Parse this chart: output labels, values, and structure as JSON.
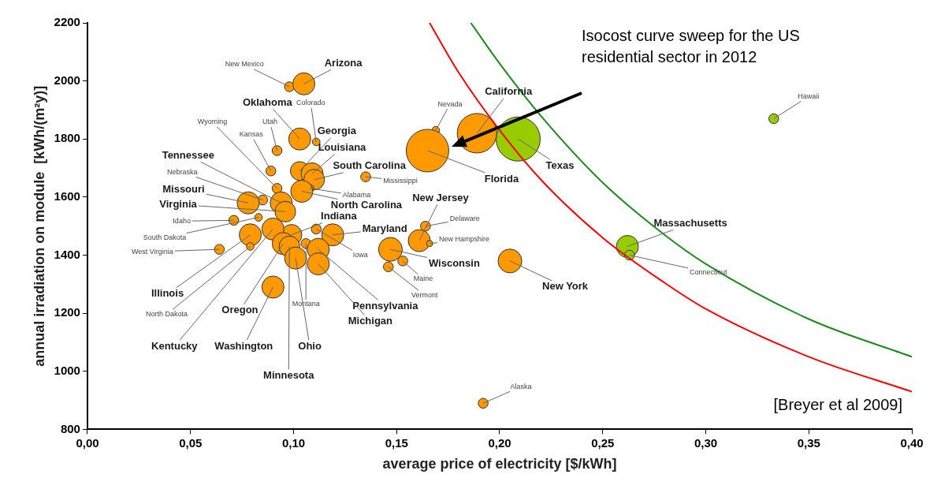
{
  "chart_data": {
    "type": "bubble",
    "xlabel": "average price of electricity [$/kWh]",
    "ylabel": "annual irradiation on module  [kWh/(m²y)]",
    "xlim": [
      0,
      0.4
    ],
    "ylim": [
      800,
      2200
    ],
    "xticks": [
      {
        "value": 0,
        "label": "0,00"
      },
      {
        "value": 0.05,
        "label": "0,05"
      },
      {
        "value": 0.1,
        "label": "0,10"
      },
      {
        "value": 0.15,
        "label": "0,15"
      },
      {
        "value": 0.2,
        "label": "0,20"
      },
      {
        "value": 0.25,
        "label": "0,25"
      },
      {
        "value": 0.3,
        "label": "0,30"
      },
      {
        "value": 0.35,
        "label": "0,35"
      },
      {
        "value": 0.4,
        "label": "0,40"
      }
    ],
    "yticks": [
      800,
      1000,
      1200,
      1400,
      1600,
      1800,
      2000,
      2200
    ],
    "grid": false,
    "legend": false,
    "series": [
      {
        "type": "bubble",
        "color": "#ff9900",
        "x": [
          0.098,
          0.105,
          0.103,
          0.111,
          0.092,
          0.089,
          0.103,
          0.109,
          0.11,
          0.108,
          0.104,
          0.135,
          0.092,
          0.094,
          0.085,
          0.078,
          0.096,
          0.071,
          0.083,
          0.099,
          0.079,
          0.079,
          0.09,
          0.064,
          0.095,
          0.09,
          0.098,
          0.101,
          0.106,
          0.111,
          0.119,
          0.112,
          0.112,
          0.169,
          0.165,
          0.189,
          0.164,
          0.161,
          0.166,
          0.147,
          0.153,
          0.146,
          0.205,
          0.192
        ],
        "values": [
          1980,
          1990,
          1800,
          1790,
          1760,
          1690,
          1690,
          1680,
          1660,
          1630,
          1620,
          1670,
          1630,
          1580,
          1590,
          1580,
          1550,
          1520,
          1530,
          1470,
          1470,
          1430,
          1490,
          1420,
          1440,
          1290,
          1430,
          1390,
          1440,
          1490,
          1470,
          1420,
          1370,
          1830,
          1760,
          1820,
          1500,
          1450,
          1440,
          1420,
          1380,
          1360,
          1380,
          890
        ],
        "sizes": [
          0.05,
          0.25,
          0.25,
          0.03,
          0.05,
          0.05,
          0.18,
          0.25,
          0.22,
          0.03,
          0.25,
          0.05,
          0.05,
          0.25,
          0.05,
          0.25,
          0.22,
          0.05,
          0.03,
          0.22,
          0.25,
          0.03,
          0.25,
          0.05,
          0.25,
          0.25,
          0.22,
          0.25,
          0.05,
          0.05,
          0.25,
          0.25,
          0.25,
          0.03,
          0.93,
          0.8,
          0.05,
          0.25,
          0.02,
          0.29,
          0.05,
          0.05,
          0.29,
          0.05
        ]
      },
      {
        "type": "bubble",
        "color": "#99cc00",
        "x": [
          0.209,
          0.262,
          0.263,
          0.333
        ],
        "values": [
          1800,
          1430,
          1400,
          1870
        ],
        "sizes": [
          1,
          0.25,
          0.05,
          0.05
        ]
      },
      {
        "type": "line",
        "color": "#ff0000",
        "x": [
          0.166,
          0.18,
          0.2,
          0.22,
          0.25,
          0.28,
          0.3,
          0.35,
          0.4
        ],
        "values": [
          2200,
          2030,
          1830,
          1660,
          1460,
          1305,
          1215,
          1050,
          930
        ]
      },
      {
        "type": "line",
        "color": "#1a8c1a",
        "x": [
          0.186,
          0.2,
          0.22,
          0.25,
          0.28,
          0.3,
          0.35,
          0.4
        ],
        "values": [
          2200,
          2060,
          1880,
          1650,
          1470,
          1370,
          1180,
          1050
        ]
      }
    ],
    "annotations": [
      {
        "text": "New Mexico",
        "x": 0.098,
        "y": 1980
      },
      {
        "text": "Arizona",
        "x": 0.105,
        "y": 1990
      },
      {
        "text": "Oklahoma",
        "x": 0.103,
        "y": 1800
      },
      {
        "text": "Colorado",
        "x": 0.111,
        "y": 1790
      },
      {
        "text": "Utah",
        "x": 0.092,
        "y": 1760
      },
      {
        "text": "Kansas",
        "x": 0.089,
        "y": 1690
      },
      {
        "text": "Georgia",
        "x": 0.103,
        "y": 1690
      },
      {
        "text": "Louisiana",
        "x": 0.109,
        "y": 1680
      },
      {
        "text": "South Carolina",
        "x": 0.11,
        "y": 1660
      },
      {
        "text": "Alabama",
        "x": 0.108,
        "y": 1630
      },
      {
        "text": "North Carolina",
        "x": 0.104,
        "y": 1620
      },
      {
        "text": "Mississippi",
        "x": 0.135,
        "y": 1670
      },
      {
        "text": "Wyoming",
        "x": 0.092,
        "y": 1630
      },
      {
        "text": "Tennessee",
        "x": 0.094,
        "y": 1580
      },
      {
        "text": "Nebraska",
        "x": 0.085,
        "y": 1590
      },
      {
        "text": "Missouri",
        "x": 0.078,
        "y": 1580
      },
      {
        "text": "Virginia",
        "x": 0.096,
        "y": 1550
      },
      {
        "text": "Idaho",
        "x": 0.071,
        "y": 1520
      },
      {
        "text": "South Dakota",
        "x": 0.083,
        "y": 1530
      },
      {
        "text": "Indiana",
        "x": 0.099,
        "y": 1470
      },
      {
        "text": "Illinois",
        "x": 0.079,
        "y": 1470
      },
      {
        "text": "North Dakota",
        "x": 0.079,
        "y": 1430
      },
      {
        "text": "Kentucky",
        "x": 0.09,
        "y": 1490
      },
      {
        "text": "West Virginia",
        "x": 0.064,
        "y": 1420
      },
      {
        "text": "Oregon",
        "x": 0.095,
        "y": 1440
      },
      {
        "text": "Washington",
        "x": 0.09,
        "y": 1290
      },
      {
        "text": "Minnesota",
        "x": 0.098,
        "y": 1430
      },
      {
        "text": "Ohio",
        "x": 0.101,
        "y": 1390
      },
      {
        "text": "Montana",
        "x": 0.106,
        "y": 1440
      },
      {
        "text": "Iowa",
        "x": 0.111,
        "y": 1490
      },
      {
        "text": "Maryland",
        "x": 0.119,
        "y": 1470
      },
      {
        "text": "Pennsylvania",
        "x": 0.112,
        "y": 1420
      },
      {
        "text": "Michigan",
        "x": 0.112,
        "y": 1370
      },
      {
        "text": "Nevada",
        "x": 0.169,
        "y": 1830
      },
      {
        "text": "Florida",
        "x": 0.165,
        "y": 1760
      },
      {
        "text": "California",
        "x": 0.189,
        "y": 1820
      },
      {
        "text": "Delaware",
        "x": 0.164,
        "y": 1500
      },
      {
        "text": "New Jersey",
        "x": 0.161,
        "y": 1450
      },
      {
        "text": "New Hampshire",
        "x": 0.166,
        "y": 1440
      },
      {
        "text": "Wisconsin",
        "x": 0.147,
        "y": 1420
      },
      {
        "text": "Maine",
        "x": 0.153,
        "y": 1380
      },
      {
        "text": "Vermont",
        "x": 0.146,
        "y": 1360
      },
      {
        "text": "New York",
        "x": 0.205,
        "y": 1380
      },
      {
        "text": "Alaska",
        "x": 0.192,
        "y": 890
      },
      {
        "text": "Texas",
        "x": 0.209,
        "y": 1800
      },
      {
        "text": "Massachusetts",
        "x": 0.262,
        "y": 1430
      },
      {
        "text": "Connecticut",
        "x": 0.263,
        "y": 1400
      },
      {
        "text": "Hawaii",
        "x": 0.333,
        "y": 1870
      },
      "Isocost curve sweep for the US residential sector in 2012",
      "[Breyer et al 2009]"
    ]
  }
}
